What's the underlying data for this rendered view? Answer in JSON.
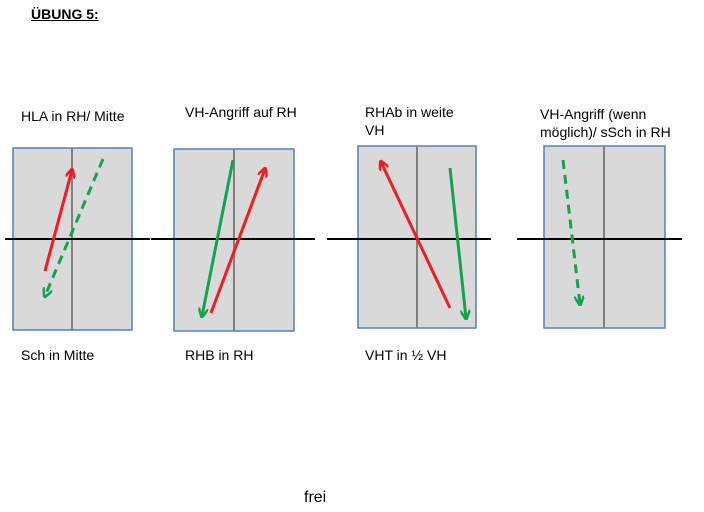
{
  "title": "ÜBUNG 5:",
  "colors": {
    "court_fill": "#d9d9d9",
    "court_border": "#4f81bd",
    "divider": "#808080",
    "baseline": "#000000",
    "red_arrow": "#ee1c25",
    "green_arrow": "#12a54b"
  },
  "diagrams": [
    {
      "top_label": "HLA in RH/ Mitte",
      "bottom_label": "Sch in Mitte"
    },
    {
      "top_label": "VH-Angriff auf RH",
      "bottom_label": "RHB in RH"
    },
    {
      "top_label": "RHAb in weite VH",
      "bottom_label": "VHT in ½ VH"
    },
    {
      "top_label": "VH-Angriff (wenn möglich)/ sSch in RH",
      "bottom_label": ""
    }
  ],
  "footer": "frei"
}
